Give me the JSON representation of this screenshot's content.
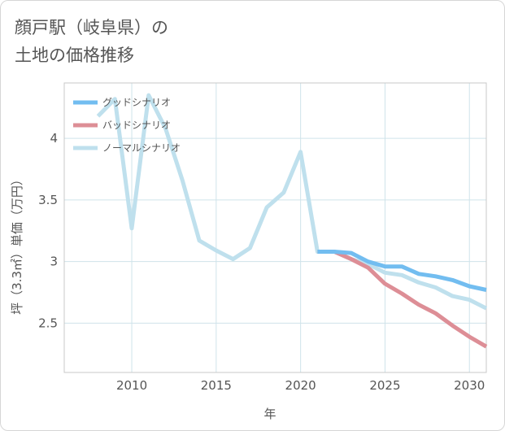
{
  "title_lines": [
    "顔戸駅（岐阜県）の",
    "土地の価格推移"
  ],
  "chart_data": {
    "type": "line",
    "title": "顔戸駅（岐阜県）の土地の価格推移",
    "xlabel": "年",
    "ylabel": "坪（3.3㎡）単価（万円）",
    "xlim": [
      2006,
      2031
    ],
    "ylim": [
      2.1,
      4.45
    ],
    "xticks": [
      2010,
      2015,
      2020,
      2025,
      2030
    ],
    "yticks": [
      2.5,
      3,
      3.5,
      4
    ],
    "ytick_labels": [
      "2.5",
      "3",
      "3.5",
      "4"
    ],
    "legend_position": "top-left",
    "series": [
      {
        "name": "グッドシナリオ",
        "color": "#72bdf0",
        "points": [
          [
            2021,
            3.08
          ],
          [
            2022,
            3.08
          ],
          [
            2023,
            3.07
          ],
          [
            2024,
            3.0
          ],
          [
            2025,
            2.96
          ],
          [
            2026,
            2.96
          ],
          [
            2027,
            2.9
          ],
          [
            2028,
            2.88
          ],
          [
            2029,
            2.85
          ],
          [
            2030,
            2.8
          ],
          [
            2031,
            2.77
          ]
        ]
      },
      {
        "name": "バッドシナリオ",
        "color": "#dd8e96",
        "points": [
          [
            2021,
            3.08
          ],
          [
            2022,
            3.08
          ],
          [
            2023,
            3.02
          ],
          [
            2024,
            2.95
          ],
          [
            2025,
            2.82
          ],
          [
            2026,
            2.74
          ],
          [
            2027,
            2.65
          ],
          [
            2028,
            2.58
          ],
          [
            2029,
            2.48
          ],
          [
            2030,
            2.39
          ],
          [
            2031,
            2.31
          ]
        ]
      },
      {
        "name": "ノーマルシナリオ",
        "color": "#bfe0ed",
        "points": [
          [
            2008,
            4.18
          ],
          [
            2009,
            4.32
          ],
          [
            2010,
            3.27
          ],
          [
            2011,
            4.35
          ],
          [
            2012,
            4.08
          ],
          [
            2013,
            3.66
          ],
          [
            2014,
            3.17
          ],
          [
            2015,
            3.09
          ],
          [
            2016,
            3.02
          ],
          [
            2017,
            3.11
          ],
          [
            2018,
            3.44
          ],
          [
            2019,
            3.56
          ],
          [
            2020,
            3.89
          ],
          [
            2021,
            3.08
          ],
          [
            2022,
            3.08
          ],
          [
            2023,
            3.02
          ],
          [
            2024,
            2.98
          ],
          [
            2025,
            2.91
          ],
          [
            2026,
            2.89
          ],
          [
            2027,
            2.83
          ],
          [
            2028,
            2.79
          ],
          [
            2029,
            2.72
          ],
          [
            2030,
            2.69
          ],
          [
            2031,
            2.62
          ]
        ]
      }
    ]
  }
}
